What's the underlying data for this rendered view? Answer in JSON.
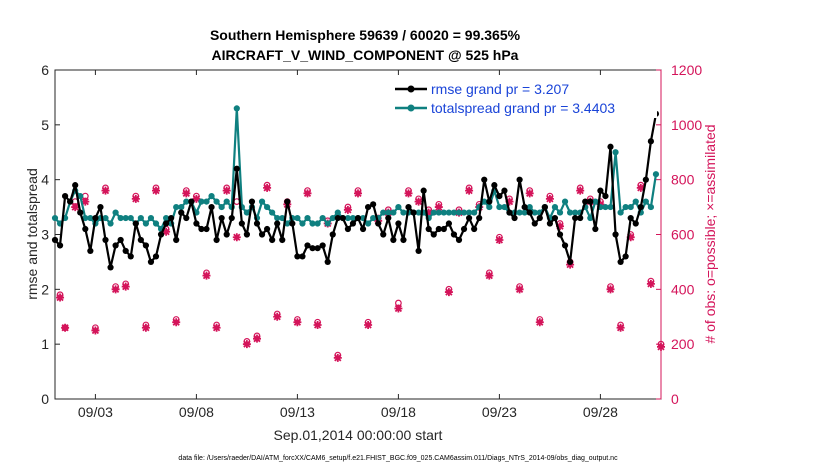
{
  "chart_data": {
    "type": "line",
    "title": "Southern Hemisphere 59639 / 60020 = 99.365%",
    "subtitle": "AIRCRAFT_V_WIND_COMPONENT @ 525 hPa",
    "xlabel": "Sep.01,2014 00:00:00 start",
    "ylabel": "rmse and totalspread",
    "ylabel_right": "# of obs: o=possible; ×=assimilated",
    "x_ticks": [
      "09/03",
      "09/08",
      "09/13",
      "09/18",
      "09/23",
      "09/28"
    ],
    "y_ticks": [
      "0",
      "1",
      "2",
      "3",
      "4",
      "5",
      "6"
    ],
    "y2_ticks": [
      "0",
      "200",
      "400",
      "600",
      "800",
      "1000",
      "1200"
    ],
    "ylim": [
      0,
      6
    ],
    "y2lim": [
      0,
      1200
    ],
    "xlim": [
      1.0,
      31.0
    ],
    "legend_position": "top-right",
    "series": [
      {
        "name": "rmse grand pr = 3.207",
        "color": "#000000",
        "x": [
          1.0,
          1.25,
          1.5,
          1.75,
          2.0,
          2.25,
          2.5,
          2.75,
          3.0,
          3.25,
          3.5,
          3.75,
          4.0,
          4.25,
          4.5,
          4.75,
          5.0,
          5.25,
          5.5,
          5.75,
          6.0,
          6.25,
          6.5,
          6.75,
          7.0,
          7.25,
          7.5,
          7.75,
          8.0,
          8.25,
          8.5,
          8.75,
          9.0,
          9.25,
          9.5,
          9.75,
          10.0,
          10.25,
          10.5,
          10.75,
          11.0,
          11.25,
          11.5,
          11.75,
          12.0,
          12.25,
          12.5,
          12.75,
          13.0,
          13.25,
          13.5,
          13.75,
          14.0,
          14.25,
          14.5,
          14.75,
          15.0,
          15.25,
          15.5,
          15.75,
          16.0,
          16.25,
          16.5,
          16.75,
          17.0,
          17.25,
          17.5,
          17.75,
          18.0,
          18.25,
          18.5,
          18.75,
          19.0,
          19.25,
          19.5,
          19.75,
          20.0,
          20.25,
          20.5,
          20.75,
          21.0,
          21.25,
          21.5,
          21.75,
          22.0,
          22.25,
          22.5,
          22.75,
          23.0,
          23.25,
          23.5,
          23.75,
          24.0,
          24.25,
          24.5,
          24.75,
          25.0,
          25.25,
          25.5,
          25.75,
          26.0,
          26.25,
          26.5,
          26.75,
          27.0,
          27.25,
          27.5,
          27.75,
          28.0,
          28.25,
          28.5,
          28.75,
          29.0,
          29.25,
          29.5,
          29.75,
          30.0,
          30.25,
          30.5,
          30.75
        ],
        "values": [
          2.9,
          2.8,
          3.7,
          3.6,
          3.9,
          3.4,
          3.1,
          2.7,
          3.3,
          3.5,
          2.9,
          2.4,
          2.8,
          2.9,
          2.7,
          2.6,
          3.2,
          2.9,
          2.8,
          2.5,
          2.6,
          3.0,
          3.2,
          3.3,
          2.9,
          3.4,
          3.3,
          3.6,
          3.2,
          3.1,
          3.1,
          3.5,
          2.9,
          3.3,
          3.0,
          3.3,
          4.2,
          3.2,
          3.0,
          3.6,
          3.2,
          3.0,
          3.1,
          2.9,
          3.2,
          2.9,
          3.6,
          3.2,
          2.6,
          2.6,
          2.8,
          2.75,
          2.75,
          2.8,
          2.5,
          3.0,
          3.3,
          3.3,
          3.1,
          3.2,
          3.3,
          3.1,
          3.5,
          3.55,
          3.2,
          3.0,
          3.3,
          2.9,
          3.2,
          2.9,
          3.5,
          3.4,
          2.7,
          3.8,
          3.1,
          3.0,
          3.1,
          3.1,
          3.2,
          3.0,
          2.9,
          3.1,
          3.3,
          3.1,
          3.3,
          4.0,
          3.6,
          3.9,
          3.7,
          3.8,
          3.4,
          3.3,
          4.0,
          3.5,
          3.4,
          3.2,
          3.3,
          3.5,
          3.2,
          3.3,
          3.0,
          2.8,
          2.5,
          3.3,
          3.3,
          3.6,
          3.6,
          3.1,
          3.8,
          3.7,
          4.6,
          3.0,
          2.5,
          2.6,
          3.3,
          3.2,
          3.5,
          4.0,
          4.7,
          5.2
        ],
        "legend_value": "3.207"
      },
      {
        "name": "totalspread grand pr = 3.4403",
        "color": "#0f8080",
        "x": [
          1.0,
          1.25,
          1.5,
          1.75,
          2.0,
          2.25,
          2.5,
          2.75,
          3.0,
          3.25,
          3.5,
          3.75,
          4.0,
          4.25,
          4.5,
          4.75,
          5.0,
          5.25,
          5.5,
          5.75,
          6.0,
          6.25,
          6.5,
          6.75,
          7.0,
          7.25,
          7.5,
          7.75,
          8.0,
          8.25,
          8.5,
          8.75,
          9.0,
          9.25,
          9.5,
          9.75,
          10.0,
          10.25,
          10.5,
          10.75,
          11.0,
          11.25,
          11.5,
          11.75,
          12.0,
          12.25,
          12.5,
          12.75,
          13.0,
          13.25,
          13.5,
          13.75,
          14.0,
          14.25,
          14.5,
          14.75,
          15.0,
          15.25,
          15.5,
          15.75,
          16.0,
          16.25,
          16.5,
          16.75,
          17.0,
          17.25,
          17.5,
          17.75,
          18.0,
          18.25,
          18.5,
          18.75,
          19.0,
          19.25,
          19.5,
          19.75,
          20.0,
          20.25,
          20.5,
          20.75,
          21.0,
          21.25,
          21.5,
          21.75,
          22.0,
          22.25,
          22.5,
          22.75,
          23.0,
          23.25,
          23.5,
          23.75,
          24.0,
          24.25,
          24.5,
          24.75,
          25.0,
          25.25,
          25.5,
          25.75,
          26.0,
          26.25,
          26.5,
          26.75,
          27.0,
          27.25,
          27.5,
          27.75,
          28.0,
          28.25,
          28.5,
          28.75,
          29.0,
          29.25,
          29.5,
          29.75,
          30.0,
          30.25,
          30.5,
          30.75
        ],
        "values": [
          3.3,
          3.2,
          3.3,
          3.6,
          3.8,
          3.7,
          3.3,
          3.3,
          3.2,
          3.3,
          3.3,
          3.2,
          3.4,
          3.3,
          3.3,
          3.3,
          3.2,
          3.3,
          3.2,
          3.3,
          3.2,
          3.1,
          3.3,
          3.2,
          3.5,
          3.5,
          3.6,
          3.6,
          3.4,
          3.6,
          3.6,
          3.7,
          3.6,
          3.5,
          3.6,
          3.5,
          5.3,
          3.5,
          3.4,
          3.5,
          3.3,
          3.6,
          3.5,
          3.4,
          3.3,
          3.3,
          3.2,
          3.3,
          3.3,
          3.2,
          3.3,
          3.2,
          3.2,
          3.3,
          3.2,
          3.3,
          3.4,
          3.3,
          3.3,
          3.3,
          3.3,
          3.3,
          3.2,
          3.3,
          3.3,
          3.4,
          3.4,
          3.4,
          3.5,
          3.4,
          3.4,
          3.4,
          3.4,
          3.4,
          3.3,
          3.4,
          3.4,
          3.4,
          3.4,
          3.4,
          3.4,
          3.4,
          3.4,
          3.4,
          3.5,
          3.6,
          3.5,
          3.8,
          3.5,
          3.5,
          3.4,
          3.4,
          3.4,
          3.4,
          3.5,
          3.4,
          3.4,
          3.5,
          3.3,
          3.5,
          3.4,
          3.6,
          3.4,
          3.4,
          3.4,
          3.5,
          3.3,
          3.6,
          3.5,
          3.5,
          3.5,
          4.5,
          3.4,
          3.5,
          3.5,
          3.6,
          3.4,
          3.6,
          3.5,
          4.1
        ],
        "legend_value": "3.4403"
      }
    ],
    "obs_possible": {
      "name": "possible",
      "color": "#d4145a",
      "x": [
        1.25,
        1.5,
        2.0,
        2.5,
        3.0,
        3.5,
        4.0,
        4.5,
        5.0,
        5.5,
        6.0,
        6.5,
        7.0,
        7.5,
        8.0,
        8.5,
        9.0,
        9.5,
        10.0,
        10.5,
        11.0,
        11.5,
        12.0,
        12.5,
        13.0,
        13.5,
        14.0,
        14.5,
        15.0,
        15.5,
        16.0,
        16.5,
        17.0,
        17.5,
        18.0,
        18.5,
        19.0,
        19.5,
        20.0,
        20.5,
        21.0,
        21.5,
        22.0,
        22.5,
        23.0,
        23.5,
        24.0,
        24.5,
        25.0,
        25.5,
        26.0,
        26.5,
        27.0,
        27.5,
        28.0,
        28.5,
        29.0,
        29.5,
        30.0,
        30.5,
        31.0
      ],
      "values": [
        380,
        260,
        720,
        740,
        260,
        770,
        410,
        420,
        740,
        270,
        770,
        620,
        290,
        760,
        740,
        460,
        270,
        770,
        720,
        210,
        230,
        780,
        310,
        720,
        290,
        760,
        280,
        650,
        160,
        700,
        760,
        280,
        660,
        690,
        350,
        760,
        730,
        690,
        710,
        400,
        690,
        770,
        710,
        460,
        590,
        730,
        410,
        760,
        290,
        740,
        640,
        500,
        770,
        730,
        720,
        410,
        270,
        600,
        780,
        430,
        200
      ],
      "cross_values": [
        370,
        260,
        700,
        720,
        250,
        760,
        400,
        410,
        730,
        260,
        760,
        610,
        280,
        750,
        730,
        450,
        260,
        760,
        590,
        200,
        220,
        770,
        300,
        710,
        280,
        750,
        270,
        640,
        150,
        690,
        750,
        270,
        650,
        680,
        330,
        750,
        720,
        680,
        700,
        390,
        680,
        760,
        700,
        450,
        580,
        720,
        400,
        750,
        280,
        730,
        630,
        490,
        760,
        720,
        710,
        400,
        260,
        590,
        770,
        420,
        190
      ]
    },
    "footer": "data file: /Users/raeder/DAI/ATM_forcXX/CAM6_setup/f.e21.FHIST_BGC.f09_025.CAM6assim.011/Diags_NTrS_2014-09/obs_diag_output.nc"
  }
}
